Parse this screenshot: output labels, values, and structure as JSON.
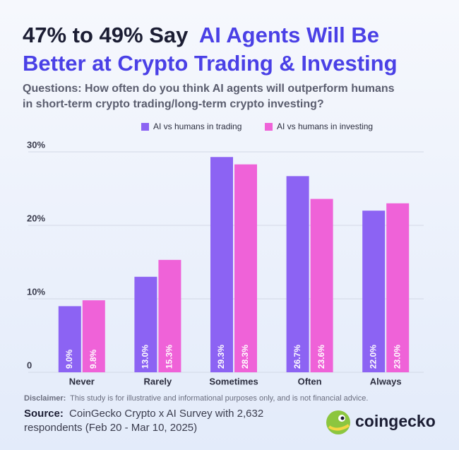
{
  "chart_data": {
    "type": "bar",
    "title": [
      "47% to 49% Say",
      "AI Agents Will Be",
      "Better at Crypto Trading & Investing"
    ],
    "subtitle": [
      "Questions: How often do you think AI agents will outperform humans",
      "in short-term crypto trading/long-term crypto investing?"
    ],
    "categories": [
      "Never",
      "Rarely",
      "Sometimes",
      "Often",
      "Always"
    ],
    "series": [
      {
        "name": "AI vs humans in trading",
        "color": "#8c63f3",
        "values": [
          9.0,
          13.0,
          29.3,
          26.7,
          22.0
        ],
        "value_labels": [
          "9.0%",
          "13.0%",
          "29.3%",
          "26.7%",
          "22.0%"
        ]
      },
      {
        "name": "AI vs humans in investing",
        "color": "#ef62d8",
        "values": [
          9.8,
          15.3,
          28.3,
          23.6,
          23.0
        ],
        "value_labels": [
          "9.8%",
          "15.3%",
          "28.3%",
          "23.6%",
          "23.0%"
        ]
      }
    ],
    "ylim": [
      0,
      30
    ],
    "yticks": [
      0,
      {
        "value": 10,
        "label": "10%"
      },
      {
        "value": 20,
        "label": "20%"
      },
      {
        "value": 30,
        "label": "30%"
      }
    ],
    "grid": true,
    "legend": "top",
    "disclaimer": [
      "Disclaimer:",
      "This study is for illustrative and informational purposes only, and is not financial advice."
    ],
    "source": [
      "Source:",
      "CoinGecko Crypto x AI Survey with 2,632",
      "respondents (Feb 20 - Mar 10, 2025)"
    ],
    "logo": "coingecko"
  }
}
